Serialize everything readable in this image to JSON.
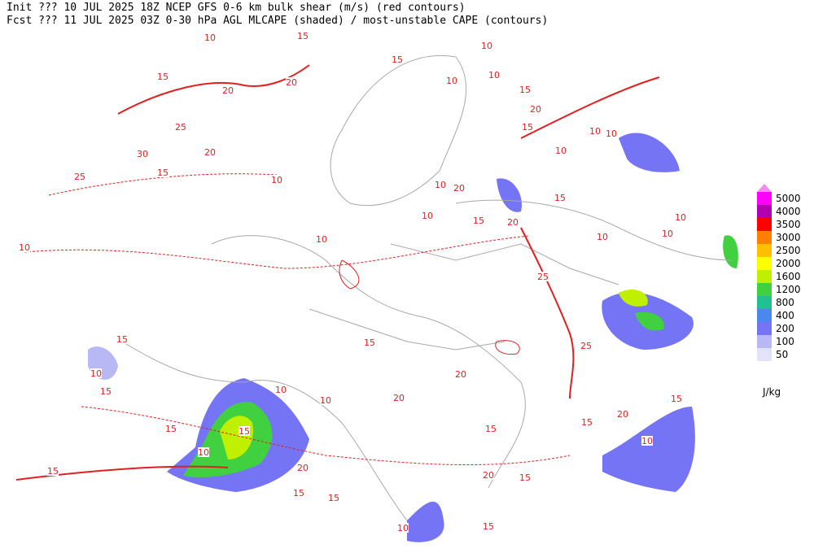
{
  "header": {
    "line1": "Init  ??? 10 JUL 2025 18Z  NCEP GFS 0-6 km bulk shear (m/s) (red contours)",
    "line2": "Fcst ??? 11 JUL 2025 03Z  0-30 hPa AGL MLCAPE (shaded) / most-unstable CAPE (contours)"
  },
  "contour_labels": [
    10,
    15,
    15,
    20,
    20,
    25,
    20,
    30,
    15,
    25,
    10,
    10,
    15,
    10,
    10,
    15,
    20,
    10,
    10,
    15,
    10,
    15,
    20,
    20,
    15,
    10,
    10,
    10,
    10,
    10,
    10,
    10,
    25,
    15,
    20,
    25,
    10,
    15,
    15,
    15,
    10,
    20,
    15,
    20,
    15,
    15,
    20,
    15,
    10,
    15,
    15,
    10,
    15,
    15,
    10,
    20,
    15,
    10
  ],
  "legend": {
    "levels": [
      {
        "value": 5000,
        "color": "#ff00ff"
      },
      {
        "value": 4000,
        "color": "#b000b0"
      },
      {
        "value": 3500,
        "color": "#ff0000"
      },
      {
        "value": 3000,
        "color": "#ff8000"
      },
      {
        "value": 2500,
        "color": "#ffc000"
      },
      {
        "value": 2000,
        "color": "#ffff00"
      },
      {
        "value": 1600,
        "color": "#c0f000"
      },
      {
        "value": 1200,
        "color": "#40d040"
      },
      {
        "value": 800,
        "color": "#20c090"
      },
      {
        "value": 400,
        "color": "#4a88f0"
      },
      {
        "value": 200,
        "color": "#7474f4"
      },
      {
        "value": 100,
        "color": "#b8b8f4"
      },
      {
        "value": 50,
        "color": "#e2e2f8"
      }
    ],
    "top_color": "#f08cf0",
    "unit": "J/kg"
  }
}
